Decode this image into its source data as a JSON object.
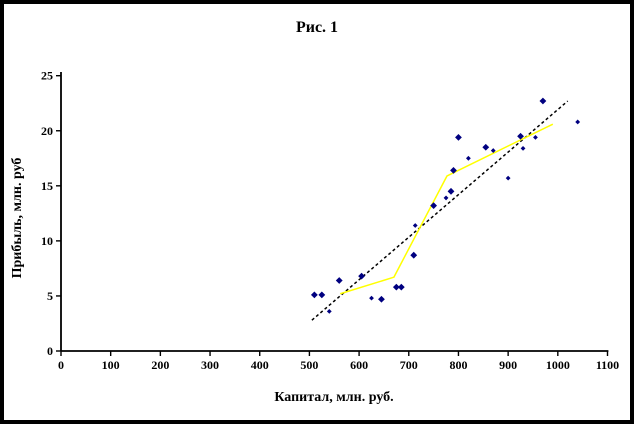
{
  "window": {
    "background": "#ffffff",
    "frame_border_color": "#000000"
  },
  "chart_data": {
    "type": "scatter",
    "title": "Рис. 1",
    "xlabel": "Капитал, млн. руб.",
    "ylabel": "Прибыль, млн. руб",
    "xlim": [
      0,
      1100
    ],
    "ylim": [
      0,
      25
    ],
    "xticks": [
      0,
      100,
      200,
      300,
      400,
      500,
      600,
      700,
      800,
      900,
      1000,
      1100
    ],
    "yticks": [
      0,
      5,
      10,
      15,
      20,
      25
    ],
    "grid": false,
    "legend": "none",
    "colors": {
      "points": "#000080",
      "smoothing_line": "#ffff00",
      "trend_line": "#000000",
      "axes": "#000000"
    },
    "series": [
      {
        "name": "trend-line",
        "type": "line",
        "style": "dotted",
        "color": "#000000",
        "dash": [
          3,
          2.6
        ],
        "points": [
          [
            505,
            2.8
          ],
          [
            1020,
            22.7
          ]
        ]
      },
      {
        "name": "smoothing-line",
        "type": "line",
        "style": "solid",
        "color": "#ffff00",
        "points": [
          [
            562,
            5.2
          ],
          [
            670,
            6.7
          ],
          [
            777,
            15.9
          ],
          [
            990,
            20.6
          ]
        ]
      },
      {
        "name": "observations",
        "type": "scatter",
        "color": "#000080",
        "points": [
          [
            510,
            5.1
          ],
          [
            525,
            5.1
          ],
          [
            540,
            3.6
          ],
          [
            560,
            6.4
          ],
          [
            605,
            6.8
          ],
          [
            625,
            4.8
          ],
          [
            645,
            4.7
          ],
          [
            675,
            5.8
          ],
          [
            685,
            5.8
          ],
          [
            710,
            8.7
          ],
          [
            713,
            11.4
          ],
          [
            750,
            13.2
          ],
          [
            775,
            13.9
          ],
          [
            785,
            14.5
          ],
          [
            790,
            16.4
          ],
          [
            800,
            19.4
          ],
          [
            820,
            17.5
          ],
          [
            855,
            18.5
          ],
          [
            870,
            18.2
          ],
          [
            900,
            15.7
          ],
          [
            925,
            19.5
          ],
          [
            930,
            18.4
          ],
          [
            955,
            19.4
          ],
          [
            970,
            22.7
          ],
          [
            1040,
            20.8
          ]
        ],
        "sizes": [
          "large",
          "large",
          "small",
          "large",
          "large",
          "small",
          "large",
          "large",
          "large",
          "large",
          "small",
          "large",
          "small",
          "large",
          "large",
          "large",
          "small",
          "large",
          "small",
          "small",
          "large",
          "small",
          "small",
          "large",
          "small"
        ]
      }
    ]
  }
}
